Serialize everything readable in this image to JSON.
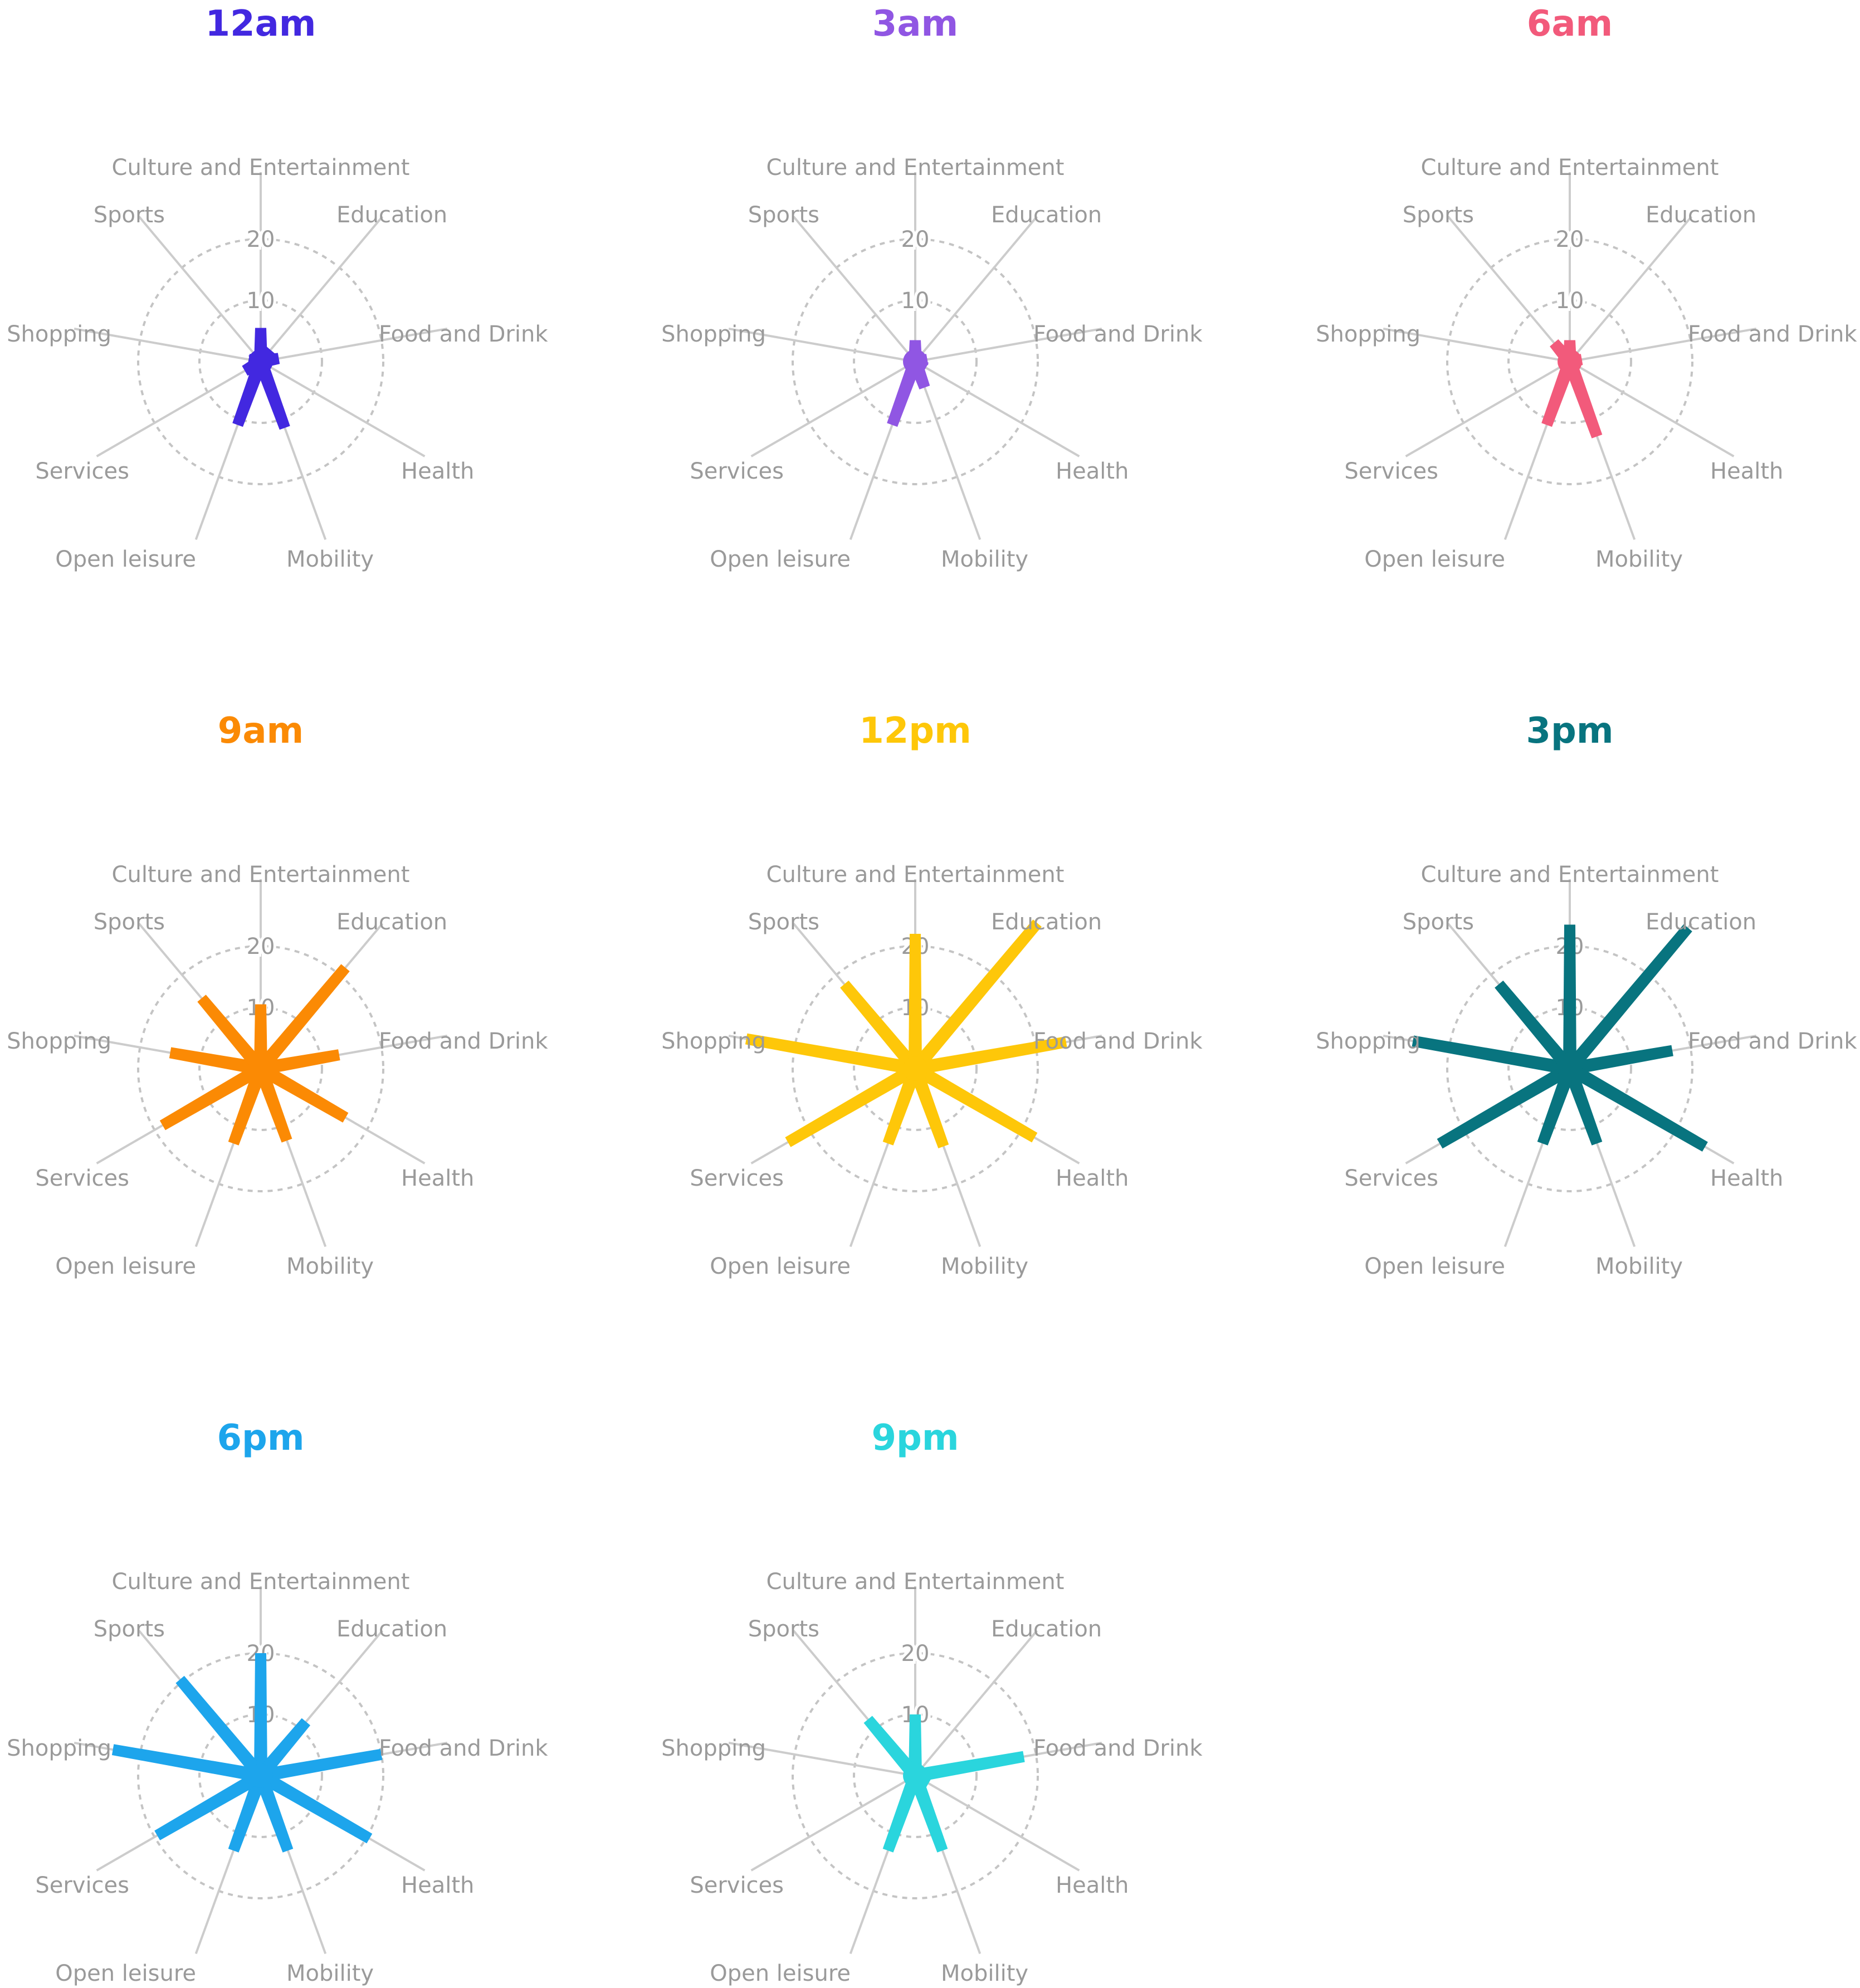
{
  "chart_data": {
    "type": "radar",
    "axes": [
      "Culture and Entertainment",
      "Education",
      "Food and Drink",
      "Health",
      "Mobility",
      "Open leisure",
      "Services",
      "Shopping",
      "Sports"
    ],
    "ticks": [
      "10",
      "20"
    ],
    "rlim": [
      0,
      20
    ],
    "grid": "dashed circles",
    "panels": [
      {
        "title": "12am",
        "color": "#4228e0",
        "values": [
          5.5,
          2.5,
          3,
          1,
          11.5,
          11,
          3,
          2,
          2
        ]
      },
      {
        "title": "3am",
        "color": "#9056e3",
        "values": [
          3.5,
          1.5,
          2,
          2,
          4.5,
          11,
          1,
          1,
          1.5
        ]
      },
      {
        "title": "6am",
        "color": "#f25a7b",
        "values": [
          3.5,
          1.5,
          2,
          1,
          13,
          11,
          1,
          1,
          4
        ]
      },
      {
        "title": "9am",
        "color": "#fb8a04",
        "values": [
          10.5,
          21.5,
          13,
          16,
          12.5,
          13,
          18.5,
          15,
          15
        ]
      },
      {
        "title": "12pm",
        "color": "#fec709",
        "values": [
          22,
          31,
          25,
          22.5,
          13.5,
          13,
          24,
          28,
          18
        ]
      },
      {
        "title": "3pm",
        "color": "#08747f",
        "values": [
          23.5,
          30,
          17,
          25.5,
          13,
          13,
          24.5,
          26,
          18
        ]
      },
      {
        "title": "6pm",
        "color": "#1da5ec",
        "values": [
          20,
          11.5,
          20,
          20.5,
          13,
          13,
          19.5,
          24.5,
          20.5
        ]
      },
      {
        "title": "9pm",
        "color": "#2ad5dd",
        "values": [
          10,
          2,
          18,
          2.5,
          13,
          13,
          1.5,
          1.5,
          12
        ]
      }
    ]
  }
}
